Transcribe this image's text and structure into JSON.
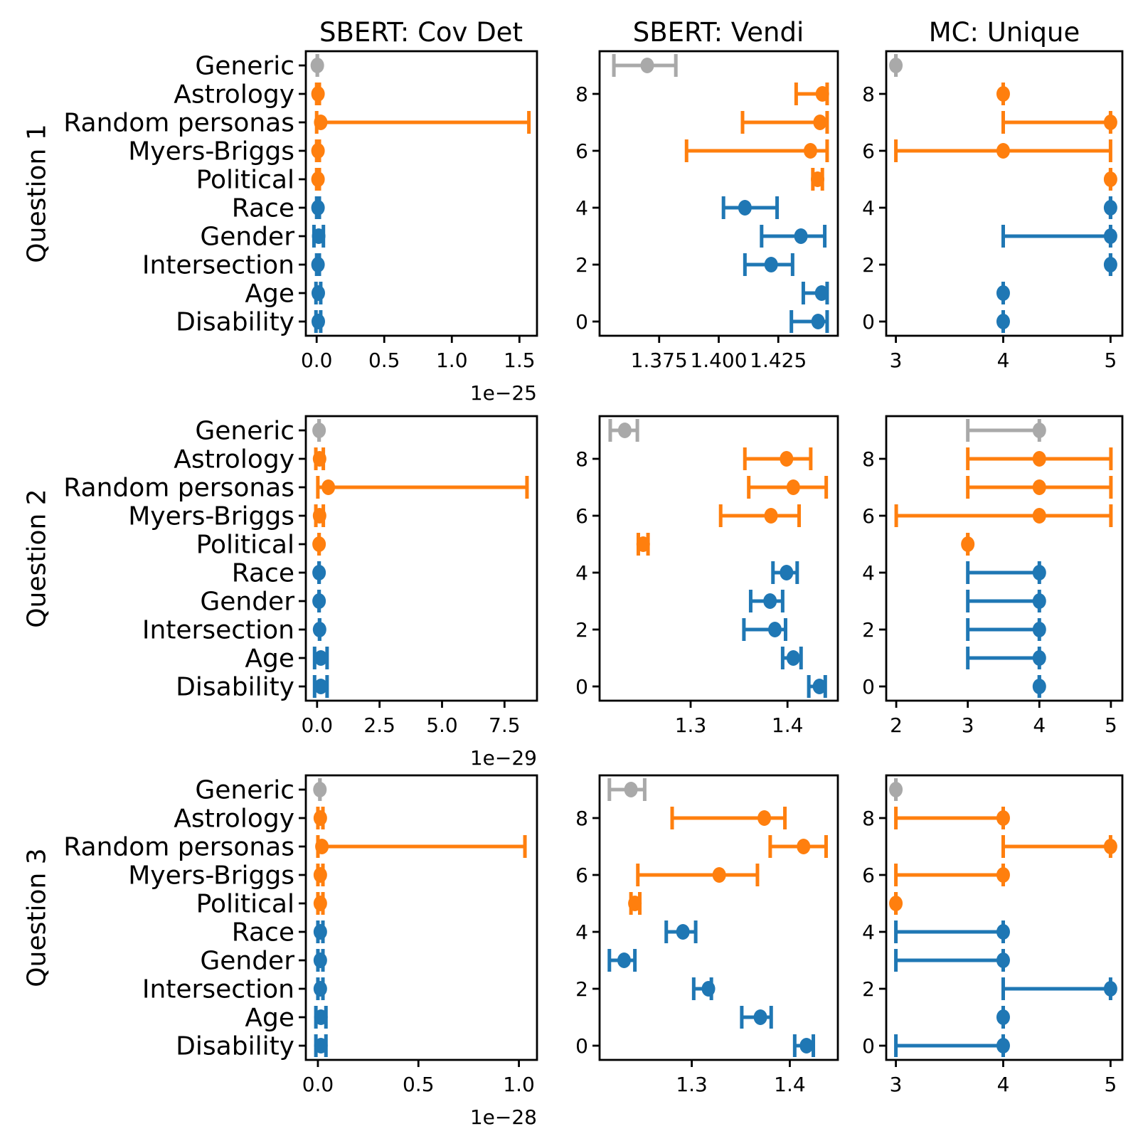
{
  "figure_title": "",
  "colors": {
    "generic_gray": "#a9a9a9",
    "persona_orange": "#ff7f0e",
    "demographic_blue": "#1f77b4",
    "axis_black": "#000000",
    "background": "#ffffff"
  },
  "col_titles": [
    "SBERT: Cov Det",
    "SBERT: Vendi",
    "MC: Unique"
  ],
  "row_labels": [
    "Question 1",
    "Question 2",
    "Question 3"
  ],
  "categories": [
    "Generic",
    "Astrology",
    "Random personas",
    "Myers-Briggs",
    "Political",
    "Race",
    "Gender",
    "Intersection",
    "Age",
    "Disability"
  ],
  "category_color_keys": [
    "generic_gray",
    "persona_orange",
    "persona_orange",
    "persona_orange",
    "persona_orange",
    "demographic_blue",
    "demographic_blue",
    "demographic_blue",
    "demographic_blue",
    "demographic_blue"
  ],
  "chart_data": [
    {
      "type": "errorbar-h",
      "row": 0,
      "col": 0,
      "xlim": [
        -0.08,
        1.63
      ],
      "ylim": [
        -0.5,
        9.5
      ],
      "xticks": [
        0.0,
        0.5,
        1.0,
        1.5
      ],
      "xtick_labels": [
        "0.0",
        "0.5",
        "1.0",
        "1.5"
      ],
      "x_offset_label": "1e−25",
      "show_category_labels": true,
      "yticks": [],
      "ytick_labels": [],
      "values": [
        [
          0.005,
          0.005,
          0.005
        ],
        [
          0.01,
          0.0,
          0.02
        ],
        [
          0.03,
          0.0,
          1.57
        ],
        [
          0.01,
          0.0,
          0.02
        ],
        [
          0.01,
          0.0,
          0.02
        ],
        [
          0.01,
          0.0,
          0.02
        ],
        [
          0.015,
          -0.02,
          0.05
        ],
        [
          0.01,
          0.0,
          0.02
        ],
        [
          0.012,
          -0.005,
          0.03
        ],
        [
          0.012,
          -0.005,
          0.03
        ]
      ]
    },
    {
      "type": "errorbar-h",
      "row": 0,
      "col": 1,
      "xlim": [
        1.35,
        1.45
      ],
      "ylim": [
        -0.5,
        9.5
      ],
      "xticks": [
        1.375,
        1.4,
        1.425
      ],
      "xtick_labels": [
        "1.375",
        "1.400",
        "1.425"
      ],
      "x_offset_label": null,
      "show_category_labels": false,
      "yticks": [
        8,
        6,
        4,
        2,
        0
      ],
      "ytick_labels": [
        "8",
        "6",
        "4",
        "2",
        "0"
      ],
      "values": [
        [
          1.37,
          1.356,
          1.382
        ],
        [
          1.4435,
          1.4325,
          1.4455
        ],
        [
          1.4425,
          1.41,
          1.4455
        ],
        [
          1.4385,
          1.3865,
          1.4455
        ],
        [
          1.4415,
          1.4395,
          1.4435
        ],
        [
          1.411,
          1.402,
          1.4245
        ],
        [
          1.4345,
          1.418,
          1.4445
        ],
        [
          1.422,
          1.411,
          1.431
        ],
        [
          1.4432,
          1.4355,
          1.4455
        ],
        [
          1.4417,
          1.4305,
          1.4455
        ]
      ]
    },
    {
      "type": "errorbar-h",
      "row": 0,
      "col": 2,
      "xlim": [
        2.91,
        5.11
      ],
      "ylim": [
        -0.5,
        9.5
      ],
      "xticks": [
        3,
        4,
        5
      ],
      "xtick_labels": [
        "3",
        "4",
        "5"
      ],
      "x_offset_label": null,
      "show_category_labels": false,
      "yticks": [
        8,
        6,
        4,
        2,
        0
      ],
      "ytick_labels": [
        "8",
        "6",
        "4",
        "2",
        "0"
      ],
      "values": [
        [
          3,
          3,
          3
        ],
        [
          4,
          4,
          4
        ],
        [
          5,
          4,
          5
        ],
        [
          4,
          3,
          5
        ],
        [
          5,
          5,
          5
        ],
        [
          5,
          5,
          5
        ],
        [
          5,
          4,
          5
        ],
        [
          5,
          5,
          5
        ],
        [
          4,
          4,
          4
        ],
        [
          4,
          4,
          4
        ]
      ]
    },
    {
      "type": "errorbar-h",
      "row": 1,
      "col": 0,
      "xlim": [
        -0.45,
        8.8
      ],
      "ylim": [
        -0.5,
        9.5
      ],
      "xticks": [
        0.0,
        2.5,
        5.0,
        7.5
      ],
      "xtick_labels": [
        "0.0",
        "2.5",
        "5.0",
        "7.5"
      ],
      "x_offset_label": "1e−29",
      "show_category_labels": true,
      "yticks": [],
      "ytick_labels": [],
      "values": [
        [
          0.08,
          0.08,
          0.08
        ],
        [
          0.1,
          -0.05,
          0.25
        ],
        [
          0.45,
          0.03,
          8.4
        ],
        [
          0.1,
          -0.05,
          0.25
        ],
        [
          0.08,
          0.08,
          0.08
        ],
        [
          0.08,
          0.08,
          0.08
        ],
        [
          0.08,
          0.08,
          0.08
        ],
        [
          0.1,
          0.1,
          0.1
        ],
        [
          0.15,
          -0.1,
          0.4
        ],
        [
          0.15,
          -0.1,
          0.4
        ]
      ]
    },
    {
      "type": "errorbar-h",
      "row": 1,
      "col": 1,
      "xlim": [
        1.206,
        1.452
      ],
      "ylim": [
        -0.5,
        9.5
      ],
      "xticks": [
        1.3,
        1.4
      ],
      "xtick_labels": [
        "1.3",
        "1.4"
      ],
      "x_offset_label": null,
      "show_category_labels": false,
      "yticks": [
        8,
        6,
        4,
        2,
        0
      ],
      "ytick_labels": [
        "8",
        "6",
        "4",
        "2",
        "0"
      ],
      "values": [
        [
          1.232,
          1.217,
          1.245
        ],
        [
          1.399,
          1.356,
          1.424
        ],
        [
          1.406,
          1.36,
          1.44
        ],
        [
          1.383,
          1.331,
          1.412
        ],
        [
          1.251,
          1.246,
          1.256
        ],
        [
          1.399,
          1.385,
          1.41
        ],
        [
          1.382,
          1.362,
          1.395
        ],
        [
          1.387,
          1.355,
          1.398
        ],
        [
          1.406,
          1.395,
          1.414
        ],
        [
          1.433,
          1.422,
          1.439
        ]
      ]
    },
    {
      "type": "errorbar-h",
      "row": 1,
      "col": 2,
      "xlim": [
        1.86,
        5.16
      ],
      "ylim": [
        -0.5,
        9.5
      ],
      "xticks": [
        2,
        3,
        4,
        5
      ],
      "xtick_labels": [
        "2",
        "3",
        "4",
        "5"
      ],
      "x_offset_label": null,
      "show_category_labels": false,
      "yticks": [
        8,
        6,
        4,
        2,
        0
      ],
      "ytick_labels": [
        "8",
        "6",
        "4",
        "2",
        "0"
      ],
      "values": [
        [
          4,
          3,
          4
        ],
        [
          4,
          3,
          5
        ],
        [
          4,
          3,
          5
        ],
        [
          4,
          2,
          5
        ],
        [
          3,
          3,
          3
        ],
        [
          4,
          3,
          4
        ],
        [
          4,
          3,
          4
        ],
        [
          4,
          3,
          4
        ],
        [
          4,
          3,
          4
        ],
        [
          4,
          4,
          4
        ]
      ]
    },
    {
      "type": "errorbar-h",
      "row": 2,
      "col": 0,
      "xlim": [
        -0.06,
        1.09
      ],
      "ylim": [
        -0.5,
        9.5
      ],
      "xticks": [
        0.0,
        0.5,
        1.0
      ],
      "xtick_labels": [
        "0.0",
        "0.5",
        "1.0"
      ],
      "x_offset_label": "1e−28",
      "show_category_labels": true,
      "yticks": [],
      "ytick_labels": [],
      "values": [
        [
          0.01,
          0.01,
          0.01
        ],
        [
          0.012,
          0.0,
          0.025
        ],
        [
          0.02,
          0.0,
          1.03
        ],
        [
          0.012,
          0.0,
          0.025
        ],
        [
          0.012,
          0.0,
          0.025
        ],
        [
          0.012,
          0.0,
          0.025
        ],
        [
          0.012,
          0.0,
          0.025
        ],
        [
          0.012,
          0.0,
          0.025
        ],
        [
          0.015,
          -0.01,
          0.04
        ],
        [
          0.015,
          -0.01,
          0.04
        ]
      ]
    },
    {
      "type": "errorbar-h",
      "row": 2,
      "col": 1,
      "xlim": [
        1.206,
        1.449
      ],
      "ylim": [
        -0.5,
        9.5
      ],
      "xticks": [
        1.3,
        1.4
      ],
      "xtick_labels": [
        "1.3",
        "1.4"
      ],
      "x_offset_label": null,
      "show_category_labels": false,
      "yticks": [
        8,
        6,
        4,
        2,
        0
      ],
      "ytick_labels": [
        "8",
        "6",
        "4",
        "2",
        "0"
      ],
      "values": [
        [
          1.238,
          1.216,
          1.252
        ],
        [
          1.374,
          1.28,
          1.395
        ],
        [
          1.414,
          1.38,
          1.437
        ],
        [
          1.328,
          1.245,
          1.367
        ],
        [
          1.242,
          1.238,
          1.247
        ],
        [
          1.291,
          1.274,
          1.304
        ],
        [
          1.231,
          1.216,
          1.242
        ],
        [
          1.317,
          1.302,
          1.32
        ],
        [
          1.37,
          1.351,
          1.381
        ],
        [
          1.417,
          1.405,
          1.424
        ]
      ]
    },
    {
      "type": "errorbar-h",
      "row": 2,
      "col": 2,
      "xlim": [
        2.91,
        5.11
      ],
      "ylim": [
        -0.5,
        9.5
      ],
      "xticks": [
        3,
        4,
        5
      ],
      "xtick_labels": [
        "3",
        "4",
        "5"
      ],
      "x_offset_label": null,
      "show_category_labels": false,
      "yticks": [
        8,
        6,
        4,
        2,
        0
      ],
      "ytick_labels": [
        "8",
        "6",
        "4",
        "2",
        "0"
      ],
      "values": [
        [
          3,
          3,
          3
        ],
        [
          4,
          3,
          4
        ],
        [
          5,
          4,
          5
        ],
        [
          4,
          3,
          4
        ],
        [
          3,
          3,
          3
        ],
        [
          4,
          3,
          4
        ],
        [
          4,
          3,
          4
        ],
        [
          5,
          4,
          5
        ],
        [
          4,
          4,
          4
        ],
        [
          4,
          3,
          4
        ]
      ]
    }
  ]
}
